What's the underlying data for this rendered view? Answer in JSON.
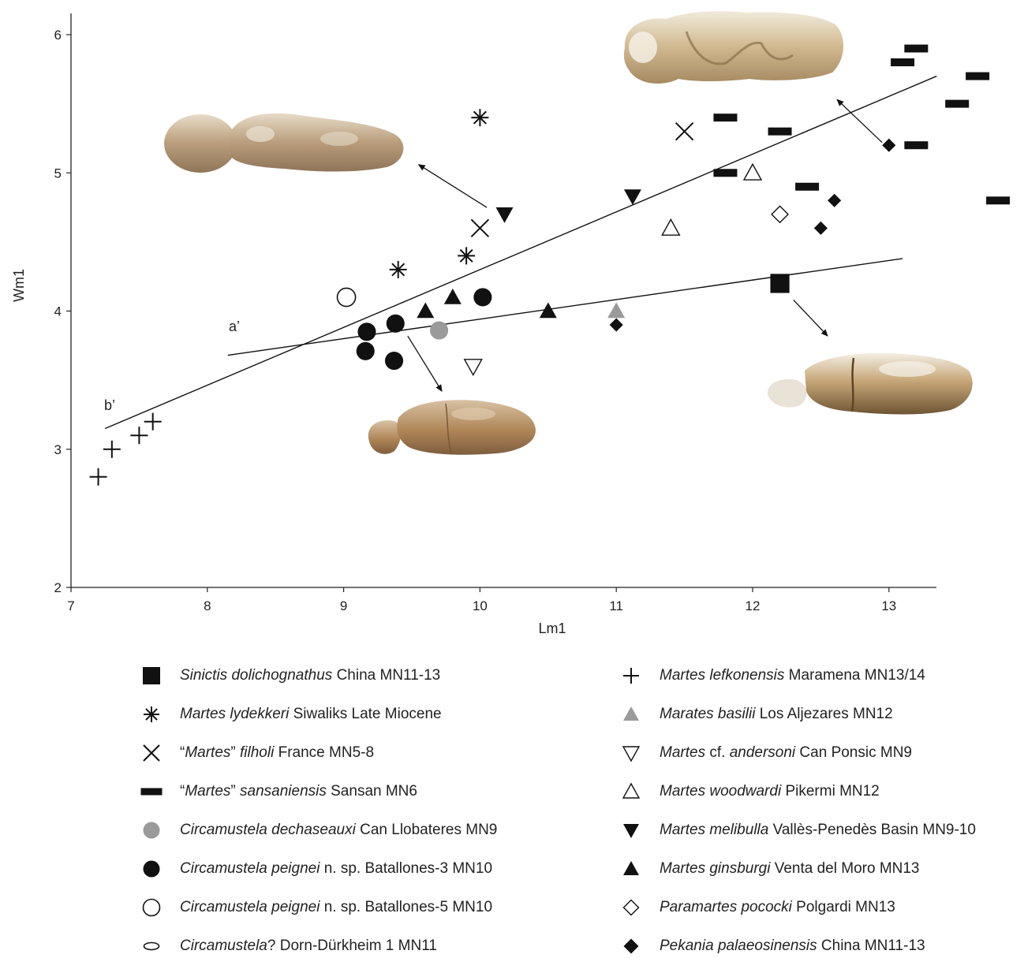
{
  "chart_data": {
    "type": "scatter",
    "xlabel": "Lm1",
    "ylabel": "Wm1",
    "xlim": [
      7,
      13.35
    ],
    "ylim": [
      2,
      6.15
    ],
    "xticks": [
      7,
      8,
      9,
      10,
      11,
      12,
      13
    ],
    "yticks": [
      2,
      3,
      4,
      5,
      6
    ],
    "grid": false,
    "legend_placement": "bottom",
    "lines": [
      {
        "label": "a’",
        "x": [
          8.15,
          13.1
        ],
        "y": [
          3.68,
          4.38
        ]
      },
      {
        "label": "b’",
        "x": [
          7.25,
          13.35
        ],
        "y": [
          3.15,
          5.7
        ]
      }
    ],
    "series": [
      {
        "legend_parts": [
          {
            "t": "Sinictis dolichognathus",
            "i": true
          },
          {
            "t": " China MN11-13",
            "i": false
          }
        ],
        "marker": "square",
        "color": "#111111",
        "points": [
          [
            12.2,
            4.2
          ]
        ]
      },
      {
        "legend_parts": [
          {
            "t": "Martes lydekkeri",
            "i": true
          },
          {
            "t": " Siwaliks Late Miocene",
            "i": false
          }
        ],
        "marker": "asterisk",
        "color": "#111111",
        "points": [
          [
            10.0,
            5.4
          ],
          [
            9.9,
            4.4
          ],
          [
            9.4,
            4.3
          ]
        ]
      },
      {
        "legend_parts": [
          {
            "t": "“",
            "i": false
          },
          {
            "t": "Martes",
            "i": true
          },
          {
            "t": "” ",
            "i": false
          },
          {
            "t": "filholi",
            "i": true
          },
          {
            "t": " France MN5-8",
            "i": false
          }
        ],
        "marker": "x",
        "color": "#111111",
        "points": [
          [
            11.5,
            5.3
          ],
          [
            10.0,
            4.6
          ]
        ]
      },
      {
        "legend_parts": [
          {
            "t": "“",
            "i": false
          },
          {
            "t": "Martes",
            "i": true
          },
          {
            "t": "” ",
            "i": false
          },
          {
            "t": "sansaniensis",
            "i": true
          },
          {
            "t": " Sansan MN6",
            "i": false
          }
        ],
        "marker": "bar",
        "color": "#111111",
        "points": [
          [
            13.2,
            5.9
          ],
          [
            13.1,
            5.8
          ],
          [
            13.65,
            5.7
          ],
          [
            13.5,
            5.5
          ],
          [
            11.8,
            5.4
          ],
          [
            12.2,
            5.3
          ],
          [
            13.2,
            5.2
          ],
          [
            11.8,
            5.0
          ],
          [
            12.4,
            4.9
          ],
          [
            13.8,
            4.8
          ]
        ]
      },
      {
        "legend_parts": [
          {
            "t": "Circamustela dechaseauxi",
            "i": true
          },
          {
            "t": " Can Llobateres MN9",
            "i": false
          }
        ],
        "marker": "circle",
        "color": "#9a9a9a",
        "points": [
          [
            9.7,
            3.86
          ]
        ]
      },
      {
        "legend_parts": [
          {
            "t": "Circamustela peignei",
            "i": true
          },
          {
            "t": " n. sp. Batallones-3 MN10",
            "i": false
          }
        ],
        "marker": "circle",
        "color": "#111111",
        "points": [
          [
            9.17,
            3.85
          ],
          [
            9.38,
            3.91
          ],
          [
            9.16,
            3.71
          ],
          [
            9.37,
            3.64
          ],
          [
            10.02,
            4.1
          ]
        ]
      },
      {
        "legend_parts": [
          {
            "t": "Circamustela peignei",
            "i": true
          },
          {
            "t": " n. sp. Batallones-5 MN10",
            "i": false
          }
        ],
        "marker": "circle-open",
        "color": "#111111",
        "points": [
          [
            9.02,
            4.1
          ]
        ]
      },
      {
        "legend_parts": [
          {
            "t": "Circamustela",
            "i": true
          },
          {
            "t": "? Dorn-Dürkheim 1 MN11",
            "i": false
          }
        ],
        "marker": "ellipse-open",
        "color": "#111111",
        "points": []
      },
      {
        "legend_parts": [
          {
            "t": "Martes lefkonensis",
            "i": true
          },
          {
            "t": " Maramena MN13/14",
            "i": false
          }
        ],
        "marker": "plus",
        "color": "#111111",
        "points": [
          [
            7.2,
            2.8
          ],
          [
            7.3,
            3.0
          ],
          [
            7.5,
            3.1
          ],
          [
            7.6,
            3.2
          ]
        ]
      },
      {
        "legend_parts": [
          {
            "t": "Marates basilii",
            "i": true
          },
          {
            "t": " Los Aljezares MN12",
            "i": false
          }
        ],
        "marker": "triangle-up",
        "color": "#9a9a9a",
        "points": [
          [
            11.0,
            4.0
          ]
        ]
      },
      {
        "legend_parts": [
          {
            "t": "Martes",
            "i": true
          },
          {
            "t": " cf. ",
            "i": false
          },
          {
            "t": "andersoni",
            "i": true
          },
          {
            "t": " Can Ponsic MN9",
            "i": false
          }
        ],
        "marker": "triangle-down-open",
        "color": "#111111",
        "points": [
          [
            9.95,
            3.6
          ]
        ]
      },
      {
        "legend_parts": [
          {
            "t": "Martes woodwardi",
            "i": true
          },
          {
            "t": " Pikermi MN12",
            "i": false
          }
        ],
        "marker": "triangle-up-open",
        "color": "#111111",
        "points": [
          [
            12.0,
            5.0
          ],
          [
            11.4,
            4.6
          ]
        ]
      },
      {
        "legend_parts": [
          {
            "t": "Martes melibulla",
            "i": true
          },
          {
            "t": " Vallès-Penedès Basin MN9-10",
            "i": false
          }
        ],
        "marker": "triangle-down",
        "color": "#111111",
        "points": [
          [
            10.18,
            4.7
          ],
          [
            11.12,
            4.83
          ]
        ]
      },
      {
        "legend_parts": [
          {
            "t": "Martes ginsburgi",
            "i": true
          },
          {
            "t": " Venta del Moro MN13",
            "i": false
          }
        ],
        "marker": "triangle-up",
        "color": "#111111",
        "points": [
          [
            9.6,
            4.0
          ],
          [
            9.8,
            4.1
          ],
          [
            10.5,
            4.0
          ]
        ]
      },
      {
        "legend_parts": [
          {
            "t": "Paramartes pococki",
            "i": true
          },
          {
            "t": " Polgardi MN13",
            "i": false
          }
        ],
        "marker": "diamond-open",
        "color": "#111111",
        "points": [
          [
            12.2,
            4.7
          ]
        ]
      },
      {
        "legend_parts": [
          {
            "t": "Pekania palaeosinensis",
            "i": true
          },
          {
            "t": " China MN11-13",
            "i": false
          }
        ],
        "marker": "diamond",
        "color": "#111111",
        "points": [
          [
            13.0,
            5.2
          ],
          [
            12.6,
            4.8
          ],
          [
            12.5,
            4.6
          ],
          [
            11.0,
            3.9
          ]
        ]
      }
    ],
    "annotations": [
      {
        "image": "m1-tooth-photo-circamustela-batallones-3",
        "arrow_from": [
          9.47,
          3.82
        ],
        "arrow_to": [
          9.72,
          3.42
        ]
      },
      {
        "image": "m1-tooth-photo-martes-filholi",
        "arrow_from": [
          10.05,
          4.75
        ],
        "arrow_to": [
          9.55,
          5.06
        ]
      },
      {
        "image": "m1-tooth-photo-martes-sansaniensis",
        "arrow_from": [
          12.95,
          5.22
        ],
        "arrow_to": [
          12.62,
          5.53
        ]
      },
      {
        "image": "m1-tooth-photo-sinictis-dolichognathus",
        "arrow_from": [
          12.3,
          4.08
        ],
        "arrow_to": [
          12.55,
          3.82
        ]
      }
    ]
  }
}
